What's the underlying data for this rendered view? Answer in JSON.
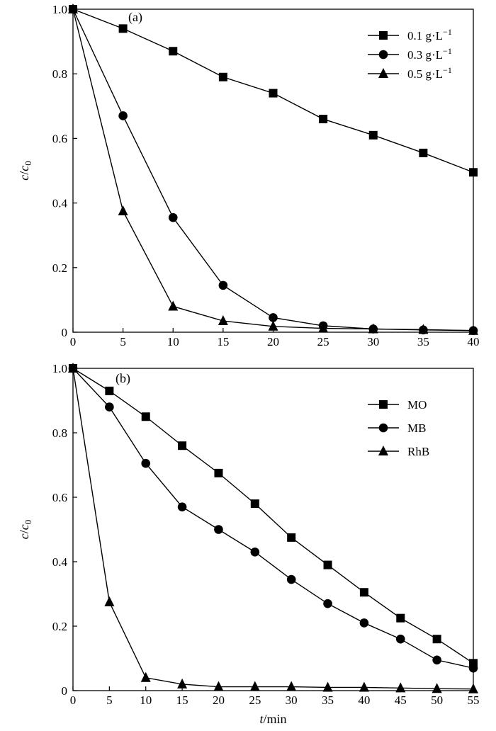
{
  "chart_data": [
    {
      "type": "line",
      "panel_label": "(a)",
      "xlabel": "",
      "ylabel_italic": "c",
      "ylabel_mid": "/",
      "ylabel_italic2": "c",
      "ylabel_sub": "0",
      "xlim": [
        0,
        40
      ],
      "ylim": [
        0,
        1.0
      ],
      "xticks": [
        "0",
        "5",
        "10",
        "15",
        "20",
        "25",
        "30",
        "35",
        "40"
      ],
      "yticks": [
        "0",
        "0.2",
        "0.4",
        "0.6",
        "0.8",
        "1.0"
      ],
      "legend_position": "top-right",
      "x": [
        0,
        5,
        10,
        15,
        20,
        25,
        30,
        35,
        40
      ],
      "series": [
        {
          "name": "0.1 g·L",
          "name_sup": "−1",
          "marker": "square",
          "values": [
            1.0,
            0.94,
            0.87,
            0.79,
            0.74,
            0.66,
            0.61,
            0.555,
            0.495
          ]
        },
        {
          "name": "0.3 g·L",
          "name_sup": "−1",
          "marker": "circle",
          "values": [
            1.0,
            0.67,
            0.355,
            0.145,
            0.045,
            0.02,
            0.01,
            0.007,
            0.005
          ]
        },
        {
          "name": "0.5 g·L",
          "name_sup": "−1",
          "marker": "triangle",
          "values": [
            1.0,
            0.375,
            0.08,
            0.035,
            0.018,
            0.012,
            0.01,
            0.008,
            0.005
          ]
        }
      ]
    },
    {
      "type": "line",
      "panel_label": "(b)",
      "xlabel_italic": "t",
      "xlabel_rest": "/min",
      "ylabel_italic": "c",
      "ylabel_mid": "/",
      "ylabel_italic2": "c",
      "ylabel_sub": "0",
      "xlim": [
        0,
        55
      ],
      "ylim": [
        0,
        1.0
      ],
      "xticks": [
        "0",
        "5",
        "10",
        "15",
        "20",
        "25",
        "30",
        "35",
        "40",
        "45",
        "50",
        "55"
      ],
      "yticks": [
        "0",
        "0.2",
        "0.4",
        "0.6",
        "0.8",
        "1.0"
      ],
      "legend_position": "top-right",
      "x": [
        0,
        5,
        10,
        15,
        20,
        25,
        30,
        35,
        40,
        45,
        50,
        55
      ],
      "series": [
        {
          "name": "MO",
          "marker": "square",
          "values": [
            1.0,
            0.93,
            0.85,
            0.76,
            0.675,
            0.58,
            0.475,
            0.39,
            0.305,
            0.225,
            0.16,
            0.085
          ]
        },
        {
          "name": "MB",
          "marker": "circle",
          "values": [
            1.0,
            0.88,
            0.705,
            0.57,
            0.5,
            0.43,
            0.345,
            0.27,
            0.21,
            0.16,
            0.095,
            0.07
          ]
        },
        {
          "name": "RhB",
          "marker": "triangle",
          "values": [
            1.0,
            0.275,
            0.04,
            0.02,
            0.012,
            0.012,
            0.012,
            0.01,
            0.01,
            0.008,
            0.006,
            0.005
          ]
        }
      ]
    }
  ]
}
